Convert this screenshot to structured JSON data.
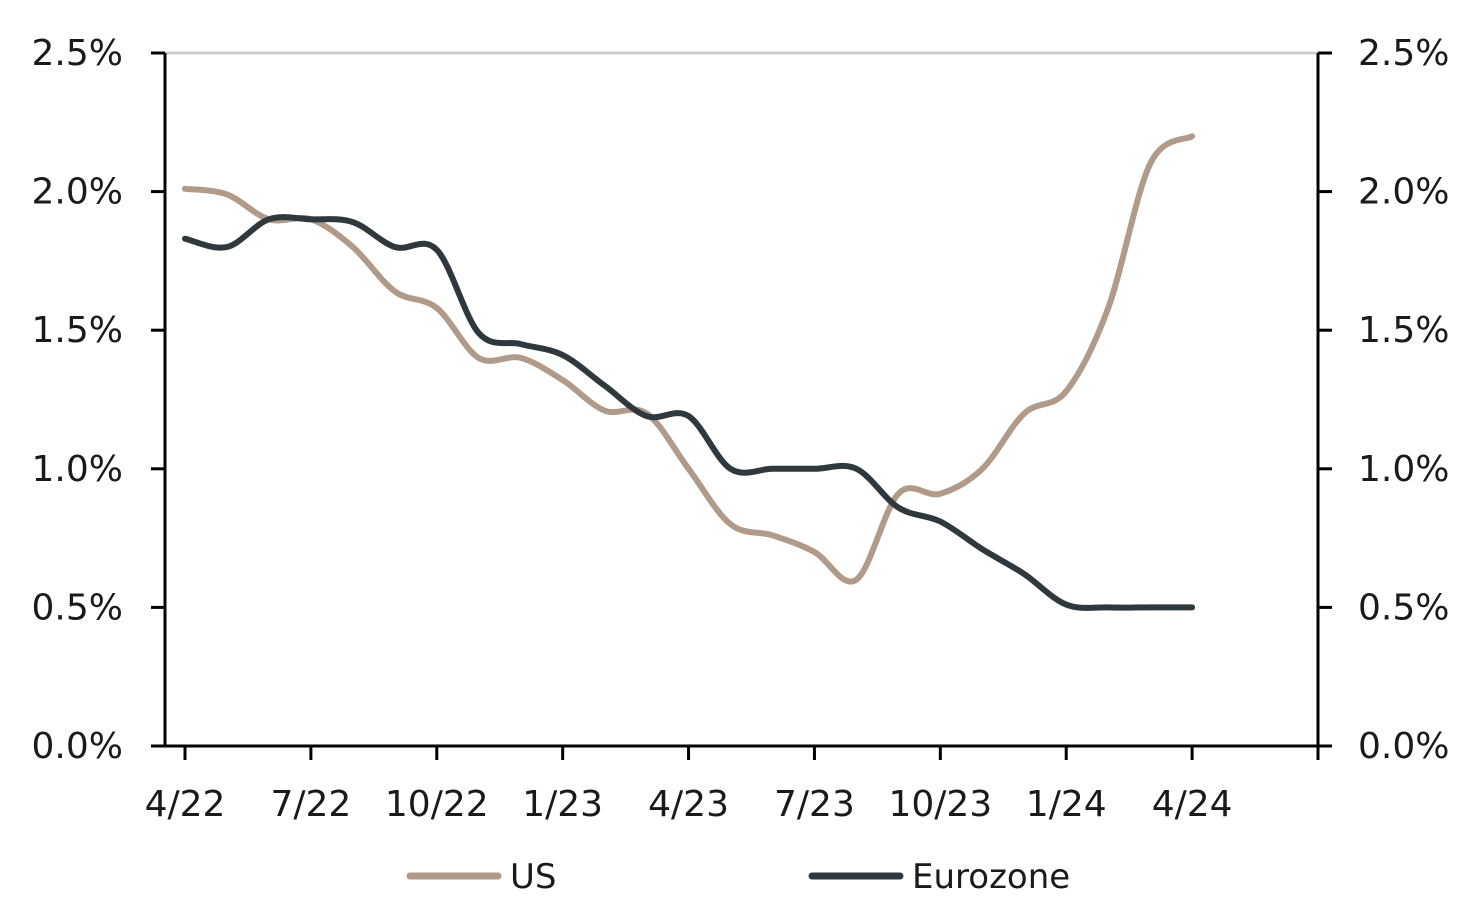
{
  "chart_data": {
    "type": "line",
    "title": "",
    "xlabel": "",
    "ylabel": "",
    "ylim": [
      0,
      2.5
    ],
    "y_ticks": [
      "0.0%",
      "0.5%",
      "1.0%",
      "1.5%",
      "2.0%",
      "2.5%"
    ],
    "y_tick_values": [
      0,
      0.5,
      1.0,
      1.5,
      2.0,
      2.5
    ],
    "right_axis_ticks": [
      "0.0%",
      "0.5%",
      "1.0%",
      "1.5%",
      "2.0%",
      "2.5%"
    ],
    "x_tick_labels": [
      "4/22",
      "7/22",
      "10/22",
      "1/23",
      "4/23",
      "7/23",
      "10/23",
      "1/24",
      "4/24"
    ],
    "x_tick_dates": [
      "2022-04",
      "2022-07",
      "2022-10",
      "2023-01",
      "2023-04",
      "2023-07",
      "2023-10",
      "2024-01",
      "2024-04"
    ],
    "x_range": [
      "2022-04",
      "2024-07"
    ],
    "grid": "top line only",
    "legend_position": "bottom",
    "x": [
      "2022-04",
      "2022-05",
      "2022-06",
      "2022-07",
      "2022-08",
      "2022-09",
      "2022-10",
      "2022-11",
      "2022-12",
      "2023-01",
      "2023-02",
      "2023-03",
      "2023-04",
      "2023-05",
      "2023-06",
      "2023-07",
      "2023-08",
      "2023-09",
      "2023-10",
      "2023-11",
      "2023-12",
      "2024-01",
      "2024-02",
      "2024-03",
      "2024-04"
    ],
    "series": [
      {
        "name": "US",
        "color": "#b09a89",
        "values": [
          2.01,
          1.99,
          1.9,
          1.9,
          1.8,
          1.64,
          1.58,
          1.4,
          1.4,
          1.32,
          1.21,
          1.2,
          1.0,
          0.8,
          0.76,
          0.7,
          0.6,
          0.91,
          0.91,
          1.0,
          1.2,
          1.28,
          1.58,
          2.1,
          2.2
        ]
      },
      {
        "name": "Eurozone",
        "color": "#2f393d",
        "values": [
          1.83,
          1.8,
          1.9,
          1.9,
          1.89,
          1.8,
          1.79,
          1.49,
          1.45,
          1.41,
          1.3,
          1.19,
          1.19,
          1.0,
          1.0,
          1.0,
          1.0,
          0.86,
          0.81,
          0.71,
          0.62,
          0.51,
          0.5,
          0.5,
          0.5
        ]
      }
    ]
  }
}
